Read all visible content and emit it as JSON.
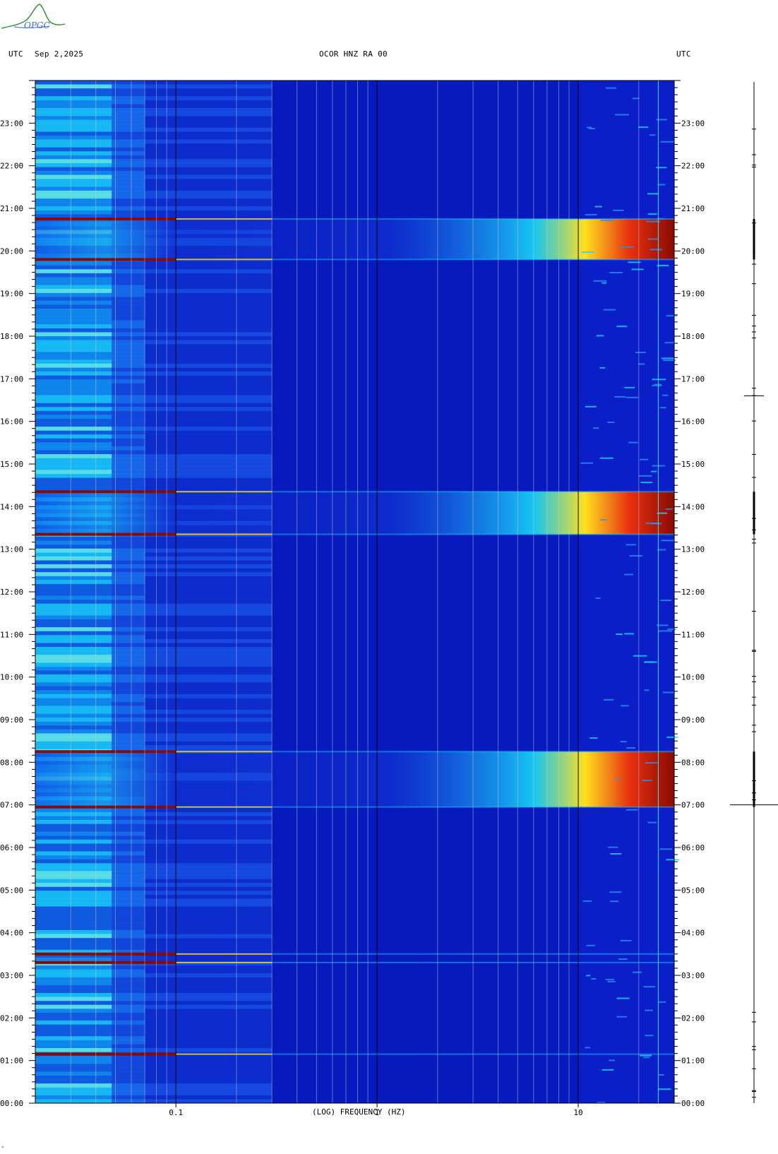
{
  "header": {
    "left_utc": "UTC",
    "date": "Sep 2,2025",
    "station": "OCOR HNZ RA 00",
    "right_utc": "UTC"
  },
  "logo": {
    "text": "OPGC"
  },
  "colors": {
    "background_blue": "#0a1fc8",
    "deep_blue": "#0410a8",
    "cyan": "#18d8f8",
    "yellow": "#ffe020",
    "dark_red": "#8a0a00",
    "grid_line": "#c8c8c8"
  },
  "chart_data": {
    "type": "heatmap",
    "title": "OCOR HNZ RA 00",
    "xlabel": "(LOG) FREQUENCY (HZ)",
    "ylabel": "UTC",
    "x_scale": "log",
    "xlim": [
      0.02,
      30
    ],
    "x_tick_labels": [
      "0.1",
      "1",
      "10"
    ],
    "x_tick_values": [
      0.1,
      1,
      10
    ],
    "ylim_hours": [
      0,
      24
    ],
    "y_tick_labels": [
      "00:00",
      "01:00",
      "02:00",
      "03:00",
      "04:00",
      "05:00",
      "06:00",
      "07:00",
      "08:00",
      "09:00",
      "10:00",
      "11:00",
      "12:00",
      "13:00",
      "14:00",
      "15:00",
      "16:00",
      "17:00",
      "18:00",
      "19:00",
      "20:00",
      "21:00",
      "22:00",
      "23:00"
    ],
    "bright_bands": [
      {
        "start_hour": 6.95,
        "end_hour": 8.25
      },
      {
        "start_hour": 13.35,
        "end_hour": 14.35
      },
      {
        "start_hour": 19.8,
        "end_hour": 20.75
      }
    ],
    "low_freq_strong_lines_hours": [
      1.15,
      3.3,
      3.5,
      6.95,
      8.25,
      13.35,
      14.35,
      19.8,
      20.75
    ],
    "spike_markers_hours": [
      7.0,
      16.6
    ]
  }
}
